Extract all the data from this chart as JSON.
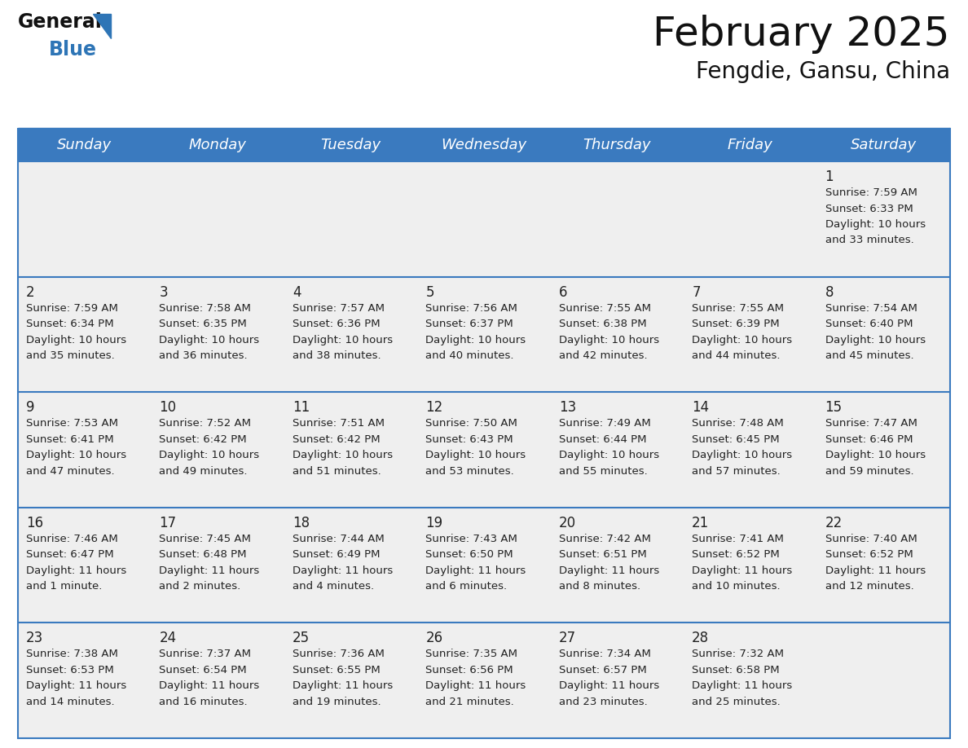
{
  "title": "February 2025",
  "subtitle": "Fengdie, Gansu, China",
  "header_color": "#3a7abf",
  "header_text_color": "#ffffff",
  "background_color": "#ffffff",
  "cell_bg_color": "#efefef",
  "cell_text_color": "#222222",
  "day_num_color": "#222222",
  "days_of_week": [
    "Sunday",
    "Monday",
    "Tuesday",
    "Wednesday",
    "Thursday",
    "Friday",
    "Saturday"
  ],
  "calendar_data": [
    [
      null,
      null,
      null,
      null,
      null,
      null,
      {
        "day": 1,
        "sunrise": "7:59 AM",
        "sunset": "6:33 PM",
        "daylight": "10 hours and 33 minutes."
      }
    ],
    [
      {
        "day": 2,
        "sunrise": "7:59 AM",
        "sunset": "6:34 PM",
        "daylight": "10 hours and 35 minutes."
      },
      {
        "day": 3,
        "sunrise": "7:58 AM",
        "sunset": "6:35 PM",
        "daylight": "10 hours and 36 minutes."
      },
      {
        "day": 4,
        "sunrise": "7:57 AM",
        "sunset": "6:36 PM",
        "daylight": "10 hours and 38 minutes."
      },
      {
        "day": 5,
        "sunrise": "7:56 AM",
        "sunset": "6:37 PM",
        "daylight": "10 hours and 40 minutes."
      },
      {
        "day": 6,
        "sunrise": "7:55 AM",
        "sunset": "6:38 PM",
        "daylight": "10 hours and 42 minutes."
      },
      {
        "day": 7,
        "sunrise": "7:55 AM",
        "sunset": "6:39 PM",
        "daylight": "10 hours and 44 minutes."
      },
      {
        "day": 8,
        "sunrise": "7:54 AM",
        "sunset": "6:40 PM",
        "daylight": "10 hours and 45 minutes."
      }
    ],
    [
      {
        "day": 9,
        "sunrise": "7:53 AM",
        "sunset": "6:41 PM",
        "daylight": "10 hours and 47 minutes."
      },
      {
        "day": 10,
        "sunrise": "7:52 AM",
        "sunset": "6:42 PM",
        "daylight": "10 hours and 49 minutes."
      },
      {
        "day": 11,
        "sunrise": "7:51 AM",
        "sunset": "6:42 PM",
        "daylight": "10 hours and 51 minutes."
      },
      {
        "day": 12,
        "sunrise": "7:50 AM",
        "sunset": "6:43 PM",
        "daylight": "10 hours and 53 minutes."
      },
      {
        "day": 13,
        "sunrise": "7:49 AM",
        "sunset": "6:44 PM",
        "daylight": "10 hours and 55 minutes."
      },
      {
        "day": 14,
        "sunrise": "7:48 AM",
        "sunset": "6:45 PM",
        "daylight": "10 hours and 57 minutes."
      },
      {
        "day": 15,
        "sunrise": "7:47 AM",
        "sunset": "6:46 PM",
        "daylight": "10 hours and 59 minutes."
      }
    ],
    [
      {
        "day": 16,
        "sunrise": "7:46 AM",
        "sunset": "6:47 PM",
        "daylight": "11 hours and 1 minute."
      },
      {
        "day": 17,
        "sunrise": "7:45 AM",
        "sunset": "6:48 PM",
        "daylight": "11 hours and 2 minutes."
      },
      {
        "day": 18,
        "sunrise": "7:44 AM",
        "sunset": "6:49 PM",
        "daylight": "11 hours and 4 minutes."
      },
      {
        "day": 19,
        "sunrise": "7:43 AM",
        "sunset": "6:50 PM",
        "daylight": "11 hours and 6 minutes."
      },
      {
        "day": 20,
        "sunrise": "7:42 AM",
        "sunset": "6:51 PM",
        "daylight": "11 hours and 8 minutes."
      },
      {
        "day": 21,
        "sunrise": "7:41 AM",
        "sunset": "6:52 PM",
        "daylight": "11 hours and 10 minutes."
      },
      {
        "day": 22,
        "sunrise": "7:40 AM",
        "sunset": "6:52 PM",
        "daylight": "11 hours and 12 minutes."
      }
    ],
    [
      {
        "day": 23,
        "sunrise": "7:38 AM",
        "sunset": "6:53 PM",
        "daylight": "11 hours and 14 minutes."
      },
      {
        "day": 24,
        "sunrise": "7:37 AM",
        "sunset": "6:54 PM",
        "daylight": "11 hours and 16 minutes."
      },
      {
        "day": 25,
        "sunrise": "7:36 AM",
        "sunset": "6:55 PM",
        "daylight": "11 hours and 19 minutes."
      },
      {
        "day": 26,
        "sunrise": "7:35 AM",
        "sunset": "6:56 PM",
        "daylight": "11 hours and 21 minutes."
      },
      {
        "day": 27,
        "sunrise": "7:34 AM",
        "sunset": "6:57 PM",
        "daylight": "11 hours and 23 minutes."
      },
      {
        "day": 28,
        "sunrise": "7:32 AM",
        "sunset": "6:58 PM",
        "daylight": "11 hours and 25 minutes."
      },
      null
    ]
  ],
  "line_color": "#3a7abf",
  "title_fontsize": 36,
  "subtitle_fontsize": 20,
  "header_fontsize": 13,
  "day_num_fontsize": 12,
  "cell_info_fontsize": 9.5
}
